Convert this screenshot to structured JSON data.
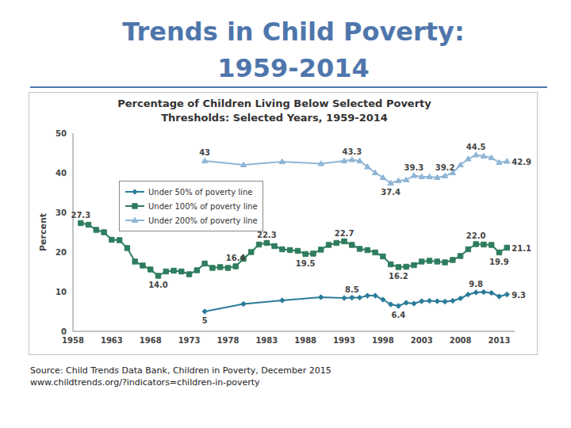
{
  "slide_title": [
    "Trends in Child Poverty:",
    "1959-2014"
  ],
  "source": [
    "Source: Child Trends Data Bank, Children in Poverty, December 2015",
    "www.childtrends.org/?indicators=children-in-poverty"
  ],
  "chart_data": {
    "type": "line",
    "title": [
      "Percentage of Children Living Below Selected Poverty",
      "Thresholds: Selected Years, 1959-2014"
    ],
    "y_label": "Percent",
    "xlim": [
      1958,
      2015
    ],
    "xticks": [
      1958,
      1963,
      1968,
      1973,
      1978,
      1983,
      1988,
      1993,
      1998,
      2003,
      2008,
      2013
    ],
    "ylim": [
      0,
      50
    ],
    "yticks": [
      0,
      10,
      20,
      30,
      40,
      50
    ],
    "grid": false,
    "legend": "left",
    "series": [
      {
        "name": "Under 50% of poverty line",
        "color": "#2b7c99",
        "marker": "diamond",
        "line_style": "solid",
        "x": [
          1975,
          1980,
          1985,
          1990,
          1993,
          1994,
          1995,
          1996,
          1997,
          1998,
          1999,
          2000,
          2001,
          2002,
          2003,
          2004,
          2005,
          2006,
          2007,
          2008,
          2009,
          2010,
          2011,
          2012,
          2013,
          2014
        ],
        "values": [
          5.0,
          6.9,
          7.8,
          8.6,
          8.4,
          8.5,
          8.5,
          9.0,
          9.0,
          8.0,
          6.8,
          6.4,
          7.2,
          7.0,
          7.6,
          7.7,
          7.6,
          7.5,
          7.7,
          8.3,
          9.3,
          9.8,
          9.9,
          9.7,
          8.8,
          9.3
        ],
        "value_labels": [
          "5",
          null,
          null,
          null,
          null,
          "8.5",
          null,
          null,
          null,
          null,
          null,
          "6.4",
          null,
          null,
          null,
          null,
          null,
          null,
          null,
          null,
          null,
          "9.8",
          null,
          null,
          null,
          "9.3"
        ]
      },
      {
        "name": "Under 100% of poverty line",
        "color": "#2e7d5e",
        "marker": "square",
        "line_style": "solid",
        "x": [
          1959,
          1960,
          1961,
          1962,
          1963,
          1964,
          1965,
          1966,
          1967,
          1968,
          1969,
          1970,
          1971,
          1972,
          1973,
          1974,
          1975,
          1976,
          1977,
          1978,
          1979,
          1980,
          1981,
          1982,
          1983,
          1984,
          1985,
          1986,
          1987,
          1988,
          1989,
          1990,
          1991,
          1992,
          1993,
          1994,
          1995,
          1996,
          1997,
          1998,
          1999,
          2000,
          2001,
          2002,
          2003,
          2004,
          2005,
          2006,
          2007,
          2008,
          2009,
          2010,
          2011,
          2012,
          2013,
          2014
        ],
        "values": [
          27.3,
          26.9,
          25.6,
          25.0,
          23.1,
          23.0,
          21.0,
          17.6,
          16.6,
          15.6,
          14.0,
          15.1,
          15.3,
          15.1,
          14.4,
          15.4,
          17.1,
          16.0,
          16.2,
          16.0,
          16.4,
          18.3,
          20.0,
          21.9,
          22.3,
          21.5,
          20.7,
          20.5,
          20.3,
          19.5,
          19.6,
          20.6,
          21.8,
          22.3,
          22.7,
          21.8,
          20.8,
          20.5,
          19.9,
          18.9,
          16.9,
          16.2,
          16.3,
          16.7,
          17.6,
          17.8,
          17.6,
          17.4,
          18.0,
          19.0,
          20.7,
          22.0,
          21.9,
          21.8,
          19.9,
          21.1
        ],
        "value_labels": [
          "27.3",
          null,
          null,
          null,
          null,
          null,
          null,
          null,
          null,
          null,
          "14.0",
          null,
          null,
          null,
          null,
          null,
          null,
          null,
          null,
          null,
          "16.4",
          null,
          null,
          null,
          "22.3",
          null,
          null,
          null,
          null,
          "19.5",
          null,
          null,
          null,
          null,
          "22.7",
          null,
          null,
          null,
          null,
          null,
          null,
          "16.2",
          null,
          null,
          null,
          null,
          null,
          null,
          null,
          null,
          null,
          "22.0",
          null,
          null,
          "19.9",
          "21.1"
        ]
      },
      {
        "name": "Under 200% of poverty line",
        "color": "#8fb5d6",
        "marker": "triangle",
        "line_style": "solid",
        "x": [
          1975,
          1980,
          1985,
          1990,
          1993,
          1994,
          1995,
          1996,
          1997,
          1998,
          1999,
          2000,
          2001,
          2002,
          2003,
          2004,
          2005,
          2006,
          2007,
          2008,
          2009,
          2010,
          2011,
          2012,
          2013,
          2014
        ],
        "values": [
          43.0,
          42.0,
          42.8,
          42.3,
          43.0,
          43.3,
          43.0,
          41.5,
          40.0,
          38.8,
          37.4,
          38.0,
          38.2,
          39.3,
          39.0,
          39.0,
          38.8,
          39.2,
          40.0,
          42.0,
          43.5,
          44.5,
          44.2,
          43.8,
          42.6,
          42.9
        ],
        "value_labels": [
          "43",
          null,
          null,
          null,
          null,
          "43.3",
          null,
          null,
          null,
          null,
          "37.4",
          null,
          null,
          "39.3",
          null,
          null,
          null,
          "39.2",
          null,
          null,
          null,
          "44.5",
          null,
          null,
          null,
          "42.9"
        ]
      }
    ]
  }
}
